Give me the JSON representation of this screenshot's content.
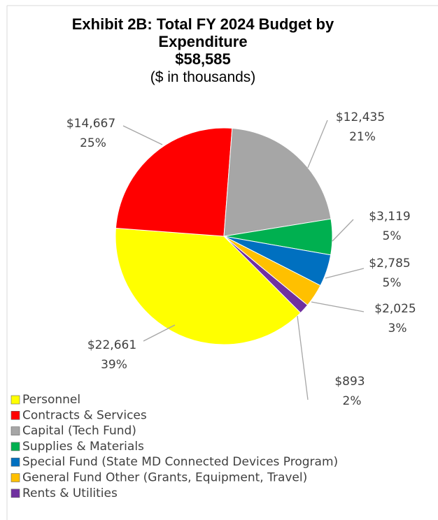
{
  "chart_data": {
    "type": "pie",
    "title": "Exhibit 2B: Total FY 2024 Budget by Expenditure",
    "subtitle": "$58,585",
    "note": "($ in thousands)",
    "categories": [
      "Personnel",
      "Contracts & Services",
      "Capital (Tech Fund)",
      "Supplies & Materials",
      "Special Fund (State MD Connected Devices Program)",
      "General Fund Other (Grants, Equipment, Travel)",
      "Rents & Utilities"
    ],
    "values": [
      22661,
      14667,
      12435,
      3119,
      2785,
      2025,
      893
    ],
    "value_labels": [
      "$22,661",
      "$14,667",
      "$12,435",
      "$3,119",
      "$2,785",
      "$2,025",
      "$893"
    ],
    "percent_labels": [
      "39%",
      "25%",
      "21%",
      "5%",
      "5%",
      "3%",
      "2%"
    ],
    "colors": [
      "#ffff00",
      "#ff0000",
      "#a6a6a6",
      "#00b050",
      "#0070c0",
      "#ffc000",
      "#7030a0"
    ],
    "legend": "bottom-left"
  }
}
